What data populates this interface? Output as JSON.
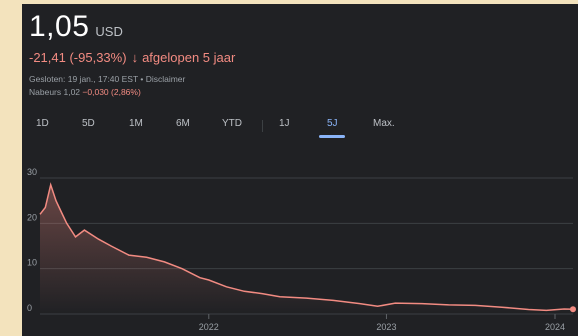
{
  "quote": {
    "price": "1,05",
    "currency": "USD",
    "change": "-21,41 (-95,33%)",
    "change_arrow": "↓",
    "period": "afgelopen 5 jaar",
    "closed": "Gesloten: 19 jan., 17:40 EST • Disclaimer",
    "after_hours_label": "Nabeurs 1,02",
    "after_hours_change": "−0,030 (2,86%)"
  },
  "tabs": [
    {
      "label": "1D",
      "active": false
    },
    {
      "label": "5D",
      "active": false
    },
    {
      "label": "1M",
      "active": false
    },
    {
      "label": "6M",
      "active": false
    },
    {
      "label": "YTD",
      "active": false
    },
    {
      "label": "1J",
      "active": false
    },
    {
      "label": "5J",
      "active": true
    },
    {
      "label": "Max.",
      "active": false
    }
  ],
  "colors": {
    "background": "#202124",
    "line": "#f28b82",
    "negative": "#f28b82",
    "active_tab": "#8ab4f8",
    "grid": "#3c4043"
  },
  "chart_data": {
    "type": "area",
    "y_ticks": [
      "0",
      "10",
      "20",
      "30"
    ],
    "x_ticks": [
      "2022",
      "2023",
      "2024"
    ],
    "ylim": [
      0,
      30
    ],
    "grid": true,
    "x": [
      2021.05,
      2021.08,
      2021.11,
      2021.14,
      2021.17,
      2021.2,
      2021.25,
      2021.3,
      2021.38,
      2021.45,
      2021.55,
      2021.65,
      2021.75,
      2021.85,
      2021.95,
      2022.0,
      2022.1,
      2022.2,
      2022.3,
      2022.4,
      2022.55,
      2022.7,
      2022.85,
      2022.95,
      2023.05,
      2023.2,
      2023.35,
      2023.5,
      2023.65,
      2023.8,
      2023.9,
      2024.0,
      2024.05
    ],
    "values": [
      22,
      23.5,
      28.5,
      25,
      22.5,
      20,
      17,
      18.5,
      16.5,
      15,
      13,
      12.5,
      11.5,
      10,
      8,
      7.5,
      6,
      5,
      4.5,
      3.8,
      3.5,
      3,
      2.3,
      1.7,
      2.4,
      2.3,
      2.0,
      1.9,
      1.5,
      1.0,
      0.8,
      1.1,
      1.05
    ]
  }
}
